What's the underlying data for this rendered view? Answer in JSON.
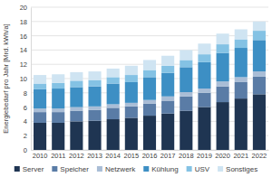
{
  "chart_data": {
    "type": "bar",
    "stacked": true,
    "grid": true,
    "legend": "bottom",
    "y_label": "Energiebedarf pro Jahr [Mrd. kWh/a]",
    "categories": [
      "2010",
      "2011",
      "2012",
      "2013",
      "2014",
      "2015",
      "2016",
      "2017",
      "2018",
      "2019",
      "2020",
      "2021",
      "2022"
    ],
    "ylim": [
      0,
      20
    ],
    "yticks": [
      0,
      2,
      4,
      6,
      8,
      10,
      12,
      14,
      16,
      18,
      20
    ],
    "series": [
      {
        "name": "Server",
        "color": "#1f3552",
        "values": [
          3.8,
          3.8,
          4.0,
          4.1,
          4.3,
          4.5,
          4.8,
          5.1,
          5.5,
          6.0,
          6.7,
          7.2,
          7.8
        ]
      },
      {
        "name": "Speicher",
        "color": "#5a7ca6",
        "values": [
          1.5,
          1.5,
          1.5,
          1.5,
          1.6,
          1.6,
          1.7,
          1.8,
          2.0,
          2.0,
          2.2,
          2.3,
          2.5
        ]
      },
      {
        "name": "Netzwerk",
        "color": "#a9bdd6",
        "values": [
          0.5,
          0.5,
          0.5,
          0.5,
          0.5,
          0.5,
          0.5,
          0.6,
          0.6,
          0.6,
          0.7,
          0.7,
          0.7
        ]
      },
      {
        "name": "Kühlung",
        "color": "#3d8fc4",
        "values": [
          2.7,
          2.8,
          2.8,
          2.8,
          2.9,
          2.9,
          3.2,
          3.3,
          3.5,
          3.7,
          4.0,
          4.1,
          4.4
        ]
      },
      {
        "name": "USV",
        "color": "#84c2e4",
        "values": [
          0.8,
          0.8,
          0.9,
          0.9,
          0.9,
          1.0,
          1.0,
          1.0,
          1.0,
          1.1,
          1.2,
          1.2,
          1.3
        ]
      },
      {
        "name": "Sonstiges",
        "color": "#cfe4f2",
        "values": [
          1.2,
          1.2,
          1.2,
          1.2,
          1.2,
          1.3,
          1.4,
          1.4,
          1.4,
          1.5,
          1.5,
          1.4,
          1.3
        ]
      }
    ]
  }
}
